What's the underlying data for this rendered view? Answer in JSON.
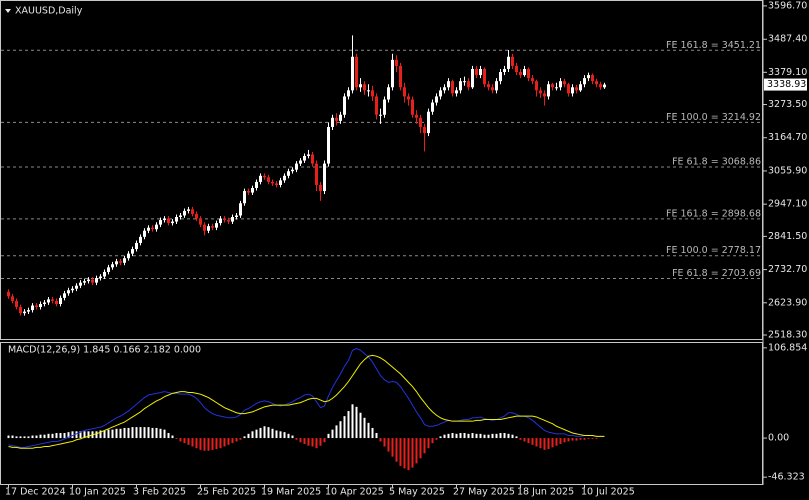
{
  "chart_data": [
    {
      "type": "candlestick",
      "title": "XAUUSD,Daily",
      "categories": [
        "17 Dec 2024",
        null,
        null,
        null,
        null,
        null,
        null,
        null,
        null,
        null,
        null,
        null,
        null,
        null,
        null,
        null,
        "10 Jan 2025",
        null,
        null,
        null,
        null,
        null,
        null,
        null,
        null,
        null,
        null,
        null,
        null,
        null,
        null,
        null,
        "3 Feb 2025",
        null,
        null,
        null,
        null,
        null,
        null,
        null,
        null,
        null,
        null,
        null,
        null,
        null,
        null,
        null,
        "25 Feb 2025",
        null,
        null,
        null,
        null,
        null,
        null,
        null,
        null,
        null,
        null,
        null,
        null,
        null,
        null,
        null,
        "19 Mar 2025",
        null,
        null,
        null,
        null,
        null,
        null,
        null,
        null,
        null,
        null,
        null,
        null,
        null,
        null,
        null,
        "10 Apr 2025",
        null,
        null,
        null,
        null,
        null,
        null,
        null,
        null,
        null,
        null,
        null,
        null,
        null,
        null,
        null,
        "5 May 2025",
        null,
        null,
        null,
        null,
        null,
        null,
        null,
        null,
        null,
        null,
        null,
        null,
        null,
        null,
        null,
        "27 May 2025",
        null,
        null,
        null,
        null,
        null,
        null,
        null,
        null,
        null,
        null,
        null,
        null,
        null,
        null,
        null,
        "18 Jun 2025",
        null,
        null,
        null,
        null,
        null,
        null,
        null,
        null,
        null,
        null,
        null,
        null,
        null,
        null,
        null,
        "10 Jul 2025",
        null,
        null,
        null,
        null,
        null
      ],
      "open": [
        2660,
        2645,
        2630,
        2610,
        2590,
        2595,
        2600,
        2615,
        2610,
        2620,
        2625,
        2635,
        2630,
        2620,
        2640,
        2655,
        2665,
        2670,
        2680,
        2690,
        2695,
        2700,
        2690,
        2705,
        2710,
        2725,
        2740,
        2750,
        2760,
        2755,
        2770,
        2785,
        2800,
        2820,
        2840,
        2860,
        2870,
        2865,
        2880,
        2895,
        2900,
        2885,
        2890,
        2905,
        2910,
        2925,
        2930,
        2915,
        2900,
        2880,
        2860,
        2875,
        2870,
        2885,
        2900,
        2895,
        2890,
        2905,
        2910,
        2950,
        2990,
        2985,
        3000,
        3020,
        3040,
        3035,
        3020,
        3015,
        3010,
        3025,
        3040,
        3055,
        3060,
        3080,
        3090,
        3105,
        3110,
        3080,
        3010,
        2990,
        3080,
        3200,
        3230,
        3220,
        3240,
        3300,
        3320,
        3430,
        3330,
        3340,
        3320,
        3320,
        3300,
        3240,
        3240,
        3290,
        3330,
        3420,
        3400,
        3330,
        3300,
        3290,
        3240,
        3230,
        3200,
        3180,
        3250,
        3280,
        3300,
        3320,
        3330,
        3350,
        3310,
        3320,
        3350,
        3350,
        3330,
        3390,
        3370,
        3390,
        3340,
        3330,
        3320,
        3350,
        3380,
        3390,
        3430,
        3400,
        3380,
        3370,
        3390,
        3360,
        3350,
        3320,
        3310,
        3300,
        3340,
        3330,
        3330,
        3350,
        3340,
        3310,
        3330,
        3320,
        3340,
        3360,
        3370,
        3350,
        3340,
        3330
      ],
      "high": [
        2668,
        2653,
        2638,
        2618,
        2603,
        2608,
        2623,
        2623,
        2628,
        2633,
        2643,
        2643,
        2638,
        2648,
        2663,
        2673,
        2678,
        2688,
        2698,
        2703,
        2708,
        2708,
        2713,
        2718,
        2733,
        2748,
        2758,
        2768,
        2768,
        2778,
        2793,
        2808,
        2828,
        2848,
        2868,
        2878,
        2878,
        2888,
        2903,
        2908,
        2908,
        2898,
        2913,
        2918,
        2933,
        2938,
        2938,
        2923,
        2908,
        2888,
        2883,
        2883,
        2893,
        2908,
        2908,
        2903,
        2913,
        2918,
        2958,
        2998,
        2998,
        3008,
        3028,
        3048,
        3048,
        3043,
        3028,
        3023,
        3033,
        3048,
        3063,
        3068,
        3088,
        3098,
        3113,
        3125,
        3118,
        3090,
        3020,
        3090,
        3215,
        3240,
        3245,
        3250,
        3310,
        3330,
        3500,
        3440,
        3360,
        3350,
        3340,
        3335,
        3310,
        3260,
        3300,
        3340,
        3440,
        3435,
        3410,
        3345,
        3310,
        3300,
        3255,
        3240,
        3210,
        3260,
        3290,
        3310,
        3330,
        3340,
        3360,
        3355,
        3330,
        3360,
        3365,
        3360,
        3400,
        3400,
        3400,
        3395,
        3350,
        3340,
        3360,
        3390,
        3400,
        3452,
        3440,
        3410,
        3390,
        3400,
        3395,
        3370,
        3355,
        3330,
        3320,
        3350,
        3345,
        3345,
        3360,
        3358,
        3345,
        3340,
        3338,
        3350,
        3370,
        3378,
        3375,
        3358,
        3348,
        3345
      ],
      "low": [
        2637,
        2622,
        2602,
        2582,
        2582,
        2587,
        2592,
        2602,
        2602,
        2612,
        2617,
        2622,
        2612,
        2612,
        2632,
        2647,
        2657,
        2662,
        2672,
        2682,
        2687,
        2682,
        2682,
        2697,
        2702,
        2717,
        2732,
        2742,
        2747,
        2747,
        2762,
        2777,
        2792,
        2812,
        2832,
        2852,
        2857,
        2857,
        2872,
        2887,
        2877,
        2877,
        2882,
        2897,
        2902,
        2917,
        2907,
        2892,
        2872,
        2845,
        2852,
        2862,
        2862,
        2877,
        2887,
        2882,
        2882,
        2897,
        2902,
        2942,
        2977,
        2977,
        2992,
        3012,
        3027,
        3012,
        3007,
        3002,
        3002,
        3017,
        3032,
        3047,
        3052,
        3072,
        3082,
        3097,
        3070,
        2990,
        2958,
        2980,
        3070,
        3190,
        3205,
        3210,
        3230,
        3290,
        3310,
        3320,
        3315,
        3305,
        3300,
        3285,
        3225,
        3210,
        3230,
        3280,
        3320,
        3380,
        3320,
        3280,
        3270,
        3230,
        3210,
        3180,
        3120,
        3170,
        3240,
        3270,
        3290,
        3310,
        3320,
        3300,
        3300,
        3310,
        3335,
        3320,
        3325,
        3360,
        3360,
        3330,
        3320,
        3310,
        3310,
        3340,
        3370,
        3380,
        3390,
        3370,
        3360,
        3365,
        3350,
        3340,
        3300,
        3295,
        3270,
        3290,
        3320,
        3320,
        3320,
        3330,
        3300,
        3300,
        3310,
        3315,
        3330,
        3350,
        3340,
        3330,
        3322,
        3325
      ],
      "close": [
        2645,
        2630,
        2610,
        2590,
        2595,
        2600,
        2615,
        2610,
        2620,
        2625,
        2635,
        2630,
        2620,
        2640,
        2655,
        2665,
        2670,
        2680,
        2690,
        2695,
        2700,
        2690,
        2705,
        2710,
        2725,
        2740,
        2750,
        2760,
        2755,
        2770,
        2785,
        2800,
        2820,
        2840,
        2860,
        2870,
        2865,
        2880,
        2895,
        2900,
        2885,
        2890,
        2905,
        2910,
        2925,
        2930,
        2915,
        2900,
        2880,
        2860,
        2875,
        2870,
        2885,
        2900,
        2895,
        2890,
        2905,
        2910,
        2950,
        2990,
        2985,
        3000,
        3020,
        3040,
        3035,
        3020,
        3015,
        3010,
        3025,
        3040,
        3055,
        3060,
        3080,
        3090,
        3105,
        3110,
        3080,
        3010,
        2990,
        3080,
        3200,
        3230,
        3220,
        3240,
        3300,
        3320,
        3430,
        3330,
        3340,
        3320,
        3320,
        3300,
        3240,
        3240,
        3290,
        3330,
        3420,
        3400,
        3330,
        3300,
        3290,
        3240,
        3230,
        3200,
        3180,
        3250,
        3280,
        3300,
        3320,
        3330,
        3350,
        3310,
        3320,
        3350,
        3350,
        3330,
        3390,
        3370,
        3390,
        3340,
        3330,
        3320,
        3350,
        3380,
        3390,
        3430,
        3400,
        3380,
        3370,
        3390,
        3360,
        3350,
        3320,
        3310,
        3300,
        3340,
        3330,
        3330,
        3350,
        3340,
        3310,
        3330,
        3320,
        3340,
        3360,
        3370,
        3350,
        3340,
        3330,
        3338.93
      ],
      "up_color": "#ffffff",
      "down_color": "#e8201c",
      "ylim": [
        2502,
        3616
      ],
      "yticks": [
        {
          "value": 3596.7,
          "label": "3596.70"
        },
        {
          "value": 3487.4,
          "label": "3487.40"
        },
        {
          "value": 3379.1,
          "label": "3379.10"
        },
        {
          "value": 3273.5,
          "label": "3273.50"
        },
        {
          "value": 3164.7,
          "label": "3164.70"
        },
        {
          "value": 3055.9,
          "label": "3055.90"
        },
        {
          "value": 2947.1,
          "label": "2947.10"
        },
        {
          "value": 2841.5,
          "label": "2841.50"
        },
        {
          "value": 2732.7,
          "label": "2732.70"
        },
        {
          "value": 2623.9,
          "label": "2623.90"
        },
        {
          "value": 2518.3,
          "label": "2518.30"
        }
      ],
      "last_price": 3338.93,
      "levels": [
        {
          "value": 3451.21,
          "label": "FE 161.8 = 3451.21"
        },
        {
          "value": 3214.92,
          "label": "FE 100.0 = 3214.92"
        },
        {
          "value": 3068.86,
          "label": "FE 61.8 = 3068.86"
        },
        {
          "value": 2898.68,
          "label": "FE 161.8 = 2898.68"
        },
        {
          "value": 2778.17,
          "label": "FE 100.0 = 2778.17"
        },
        {
          "value": 2703.69,
          "label": "FE 61.8 = 2703.69"
        }
      ]
    },
    {
      "type": "macd",
      "title": "MACD(12,26,9) 1.845 0.166 2.182 0.000",
      "main": [
        -8,
        -9,
        -10,
        -11,
        -11,
        -10,
        -9,
        -8,
        -7,
        -6,
        -5,
        -4,
        -4,
        -3,
        -1,
        1,
        3,
        5,
        7,
        9,
        10,
        11,
        12,
        13,
        15,
        18,
        21,
        24,
        26,
        29,
        32,
        36,
        40,
        44,
        48,
        51,
        52,
        53,
        54,
        55,
        54,
        53,
        53,
        52,
        52,
        52,
        50,
        47,
        42,
        36,
        32,
        29,
        27,
        26,
        25,
        24,
        24,
        25,
        28,
        33,
        35,
        38,
        41,
        43,
        44,
        43,
        41,
        39,
        38,
        39,
        41,
        43,
        46,
        48,
        51,
        52,
        50,
        43,
        36,
        38,
        50,
        60,
        68,
        76,
        85,
        92,
        104,
        106,
        104,
        100,
        96,
        90,
        82,
        74,
        69,
        66,
        67,
        66,
        61,
        54,
        47,
        39,
        31,
        24,
        16,
        14,
        14,
        15,
        17,
        19,
        21,
        20,
        20,
        21,
        22,
        22,
        24,
        24,
        25,
        23,
        22,
        21,
        22,
        24,
        26,
        30,
        30,
        28,
        26,
        26,
        24,
        21,
        17,
        13,
        9,
        7,
        6,
        5,
        5,
        5,
        3,
        3,
        2,
        2,
        3,
        3,
        3,
        2,
        2,
        2
      ],
      "signal": [
        -10,
        -11,
        -11,
        -12,
        -12,
        -12,
        -12,
        -11,
        -11,
        -10,
        -10,
        -9,
        -8,
        -7,
        -6,
        -5,
        -4,
        -2,
        -1,
        1,
        2,
        4,
        5,
        7,
        9,
        11,
        13,
        15,
        17,
        19,
        22,
        25,
        28,
        31,
        35,
        38,
        41,
        44,
        46,
        49,
        51,
        53,
        54,
        55,
        55,
        54,
        54,
        53,
        52,
        50,
        48,
        45,
        42,
        39,
        36,
        34,
        32,
        30,
        29,
        29,
        30,
        31,
        33,
        35,
        37,
        38,
        39,
        39,
        39,
        39,
        39,
        40,
        41,
        42,
        44,
        46,
        47,
        47,
        45,
        43,
        44,
        47,
        51,
        56,
        61,
        67,
        74,
        81,
        88,
        93,
        97,
        98,
        97,
        95,
        92,
        88,
        84,
        80,
        76,
        71,
        66,
        61,
        55,
        48,
        42,
        36,
        31,
        27,
        24,
        22,
        21,
        20,
        20,
        20,
        20,
        20,
        20,
        21,
        21,
        22,
        22,
        22,
        22,
        22,
        23,
        24,
        25,
        26,
        26,
        26,
        26,
        26,
        25,
        23,
        21,
        19,
        17,
        14,
        12,
        10,
        8,
        6,
        5,
        4,
        3,
        3,
        3,
        2,
        2,
        2
      ],
      "histogram": [
        3,
        3,
        2,
        2,
        2,
        2,
        3,
        3,
        4,
        4,
        5,
        5,
        6,
        6,
        6,
        7,
        8,
        8,
        8,
        8,
        8,
        8,
        8,
        9,
        9,
        10,
        10,
        11,
        11,
        12,
        12,
        13,
        13,
        13,
        13,
        13,
        12,
        12,
        11,
        10,
        6,
        3,
        -1,
        -4,
        -6,
        -8,
        -10,
        -12,
        -14,
        -15,
        -15,
        -14,
        -13,
        -12,
        -10,
        -8,
        -6,
        -4,
        -2,
        2,
        5,
        8,
        10,
        12,
        14,
        13,
        11,
        9,
        8,
        7,
        5,
        3,
        -2,
        -5,
        -7,
        -9,
        -10,
        -12,
        -9,
        -5,
        5,
        10,
        15,
        20,
        26,
        32,
        40,
        37,
        30,
        24,
        18,
        12,
        6,
        -4,
        -10,
        -16,
        -22,
        -28,
        -33,
        -36,
        -38,
        -35,
        -30,
        -24,
        -18,
        -12,
        -6,
        -2,
        2,
        4,
        5,
        6,
        5,
        6,
        6,
        5,
        6,
        5,
        5,
        4,
        4,
        5,
        5,
        6,
        6,
        5,
        4,
        2,
        -2,
        -4,
        -6,
        -8,
        -10,
        -12,
        -14,
        -13,
        -11,
        -9,
        -7,
        -5,
        -4,
        -3,
        -3,
        -2,
        -2,
        -1,
        -1,
        -1,
        0,
        0
      ],
      "main_color": "#2233dd",
      "signal_color": "#f0f000",
      "positive_color": "#ffffff",
      "negative_color": "#e8201c",
      "ylim": [
        -55.6,
        113.8
      ],
      "yticks": [
        106.854,
        {
          "value": 0,
          "label": "0.00"
        },
        -46.323
      ]
    }
  ]
}
